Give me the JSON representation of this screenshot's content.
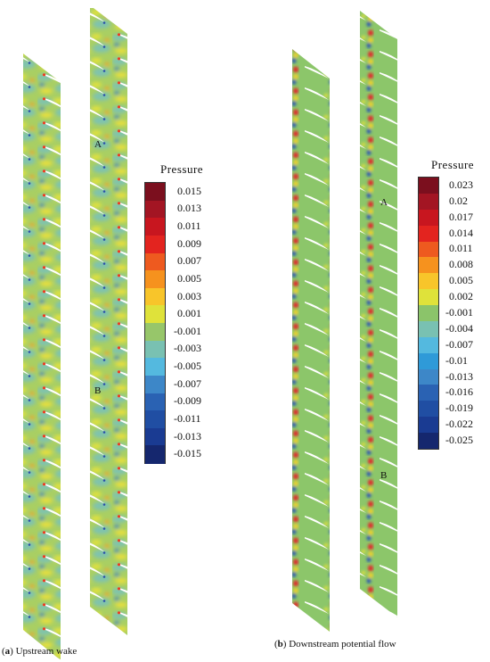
{
  "panel_a": {
    "caption_letter": "a",
    "caption_text": "Upstream wake",
    "marker_a": "A",
    "marker_b": "B",
    "legend_title": "Pressure",
    "legend_values": [
      "0.015",
      "0.013",
      "0.011",
      "0.009",
      "0.007",
      "0.005",
      "0.003",
      "0.001",
      "-0.001",
      "-0.003",
      "-0.005",
      "-0.007",
      "-0.009",
      "-0.011",
      "-0.013",
      "-0.015"
    ],
    "legend_colors": [
      "#7b0f1e",
      "#a31523",
      "#c8161f",
      "#e3241f",
      "#ee5a1f",
      "#f6921e",
      "#f8c52a",
      "#dfe23a",
      "#97c66a",
      "#79c1b2",
      "#54b9df",
      "#3d87c8",
      "#2a62b3",
      "#204ea3",
      "#1a3b92",
      "#15276e"
    ]
  },
  "panel_b": {
    "caption_letter": "b",
    "caption_text": "Downstream potential flow",
    "marker_a": "A",
    "marker_b": "B",
    "legend_title": "Pressure",
    "legend_values": [
      "0.023",
      "0.02",
      "0.017",
      "0.014",
      "0.011",
      "0.008",
      "0.005",
      "0.002",
      "-0.001",
      "-0.004",
      "-0.007",
      "-0.01",
      "-0.013",
      "-0.016",
      "-0.019",
      "-0.022",
      "-0.025"
    ],
    "legend_colors": [
      "#7b0f1e",
      "#a31523",
      "#c8161f",
      "#e3241f",
      "#ee5a1f",
      "#f6921e",
      "#f8c52a",
      "#dfe23a",
      "#8bc46a",
      "#79c1b2",
      "#54b9df",
      "#2f9ad8",
      "#3d87c8",
      "#2a62b3",
      "#204ea3",
      "#1a3b92",
      "#15276e"
    ]
  }
}
